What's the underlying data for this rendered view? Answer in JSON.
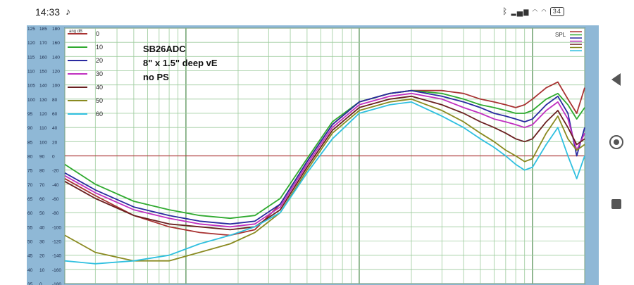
{
  "status_bar": {
    "time": "14:33",
    "battery": "34"
  },
  "icons": {
    "tiktok": "tiktok-icon",
    "bluetooth": "bluetooth-icon",
    "signal": "signal-icon",
    "wifi": "wifi-icon",
    "battery": "battery-icon"
  },
  "nav": {
    "back": "back-icon",
    "home": "home-icon",
    "recent": "recent-apps-icon"
  },
  "chart_data": {
    "type": "line",
    "annotation_lines": [
      "SB26ADC",
      "8\" x 1.5\" deep   vE",
      "no PS"
    ],
    "spl_label": "SPL",
    "legend_title": "ang dB",
    "y_tick_columns": [
      [
        "125",
        "120",
        "115",
        "110",
        "105",
        "100",
        "95",
        "90",
        "85",
        "80",
        "75",
        "70",
        "65",
        "60",
        "55",
        "50",
        "45",
        "40",
        "35"
      ],
      [
        "185",
        "170",
        "160",
        "150",
        "140",
        "130",
        "120",
        "110",
        "100",
        "90",
        "80",
        "70",
        "60",
        "50",
        "40",
        "30",
        "20",
        "10",
        "0"
      ],
      [
        "180",
        "160",
        "140",
        "120",
        "100",
        "80",
        "60",
        "40",
        "20",
        "0",
        "-20",
        "-40",
        "-60",
        "-80",
        "-100",
        "-120",
        "-140",
        "-160",
        "-180"
      ]
    ],
    "ylim": [
      35,
      125
    ],
    "x_log": true,
    "xlim": [
      20,
      20000
    ],
    "grid": true,
    "reference_line_y": 80,
    "series": [
      {
        "name": "0",
        "color": "#a83232",
        "x": [
          20,
          30,
          50,
          80,
          120,
          180,
          250,
          350,
          500,
          700,
          1000,
          1500,
          2000,
          3000,
          4000,
          5000,
          6000,
          7000,
          8000,
          9000,
          10000,
          12000,
          14000,
          16000,
          18000,
          20000
        ],
        "y": [
          72,
          66,
          59,
          55,
          53,
          52,
          54,
          63,
          78,
          91,
          99,
          102,
          103,
          103,
          102,
          100,
          99,
          98,
          97,
          98,
          100,
          104,
          106,
          100,
          95,
          104
        ]
      },
      {
        "name": "10",
        "color": "#2faa2f",
        "x": [
          20,
          30,
          50,
          80,
          120,
          180,
          250,
          350,
          500,
          700,
          1000,
          1500,
          2000,
          3000,
          4000,
          5000,
          6000,
          7000,
          8000,
          9000,
          10000,
          12000,
          14000,
          16000,
          18000,
          20000
        ],
        "y": [
          77,
          70,
          64,
          61,
          59,
          58,
          59,
          65,
          79,
          92,
          99,
          102,
          103,
          102,
          100,
          98,
          97,
          96,
          95,
          95,
          96,
          100,
          102,
          98,
          93,
          97
        ]
      },
      {
        "name": "20",
        "color": "#2a2aa0",
        "x": [
          20,
          30,
          50,
          80,
          120,
          180,
          250,
          350,
          500,
          700,
          1000,
          1500,
          2000,
          3000,
          4000,
          5000,
          6000,
          7000,
          8000,
          9000,
          10000,
          12000,
          14000,
          16000,
          18000,
          20000
        ],
        "y": [
          74,
          68,
          62,
          59,
          57,
          56,
          57,
          63,
          78,
          91,
          99,
          102,
          103,
          101,
          99,
          97,
          95,
          94,
          93,
          92,
          93,
          98,
          101,
          95,
          80,
          90
        ]
      },
      {
        "name": "30",
        "color": "#c030c0",
        "x": [
          20,
          30,
          50,
          80,
          120,
          180,
          250,
          350,
          500,
          700,
          1000,
          1500,
          2000,
          3000,
          4000,
          5000,
          6000,
          7000,
          8000,
          9000,
          10000,
          12000,
          14000,
          16000,
          18000,
          20000
        ],
        "y": [
          73,
          67,
          61,
          58,
          56,
          55,
          56,
          62,
          77,
          90,
          98,
          101,
          102,
          100,
          97,
          95,
          93,
          92,
          91,
          90,
          91,
          96,
          99,
          93,
          82,
          88
        ]
      },
      {
        "name": "40",
        "color": "#6a2020",
        "x": [
          20,
          30,
          50,
          80,
          120,
          180,
          250,
          350,
          500,
          700,
          1000,
          1500,
          2000,
          3000,
          4000,
          5000,
          6000,
          7000,
          8000,
          9000,
          10000,
          12000,
          14000,
          16000,
          18000,
          20000
        ],
        "y": [
          71,
          65,
          59,
          56,
          55,
          54,
          55,
          61,
          76,
          89,
          97,
          100,
          101,
          98,
          95,
          92,
          90,
          88,
          86,
          85,
          86,
          92,
          96,
          90,
          84,
          86
        ]
      },
      {
        "name": "50",
        "color": "#8a8a20",
        "x": [
          20,
          30,
          50,
          80,
          120,
          180,
          250,
          350,
          500,
          700,
          1000,
          1500,
          2000,
          3000,
          4000,
          5000,
          6000,
          7000,
          8000,
          9000,
          10000,
          12000,
          14000,
          16000,
          18000,
          20000
        ],
        "y": [
          52,
          46,
          43,
          43,
          46,
          49,
          53,
          60,
          75,
          88,
          96,
          99,
          100,
          96,
          92,
          88,
          85,
          82,
          80,
          78,
          79,
          88,
          94,
          86,
          82,
          84
        ]
      },
      {
        "name": "60",
        "color": "#30c0e0",
        "x": [
          20,
          30,
          50,
          80,
          120,
          180,
          250,
          350,
          500,
          700,
          1000,
          1500,
          2000,
          3000,
          4000,
          5000,
          6000,
          7000,
          8000,
          9000,
          10000,
          12000,
          14000,
          16000,
          18000,
          20000
        ],
        "y": [
          43,
          42,
          43,
          45,
          49,
          52,
          55,
          60,
          74,
          86,
          95,
          98,
          99,
          94,
          90,
          86,
          83,
          80,
          77,
          75,
          76,
          84,
          90,
          80,
          72,
          80
        ]
      }
    ]
  }
}
